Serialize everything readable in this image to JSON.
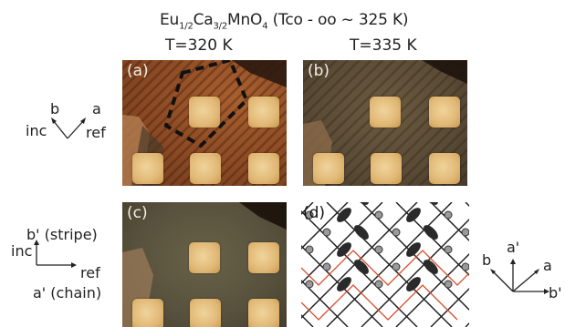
{
  "figure": {
    "title": {
      "prefix": "Eu",
      "sub1": "1/2",
      "mid": "Ca",
      "sub2": "3/2",
      "suffix": "MnO",
      "sub3": "4",
      "tail": " (Tco - oo ~ 325 K)"
    },
    "temp_left": "T=320 K",
    "temp_right": "T=335 K",
    "panels": {
      "a": "(a)",
      "b": "(b)",
      "c": "(c)",
      "d": "(d)"
    },
    "axes_top": {
      "b": "b",
      "a": "a",
      "inc": "inc",
      "ref": "ref"
    },
    "axes_mid": {
      "b_prime": "b'",
      "stripe": "(stripe)",
      "inc": "inc",
      "ref": "ref",
      "a_prime": "a'",
      "chain": "(chain)"
    },
    "axes_right": {
      "b": "b",
      "a_prime": "a'",
      "a": "a",
      "b_prime": "b'"
    },
    "colors": {
      "film_a": "#8a4a24",
      "film_b": "#5a4b36",
      "film_c": "#57513d",
      "pad": "#e1b876",
      "lattice_line": "#1a1a1a",
      "orbital": "#2a2a2a",
      "site": "#9a9a9a",
      "red_line": "#d84a2a"
    }
  }
}
